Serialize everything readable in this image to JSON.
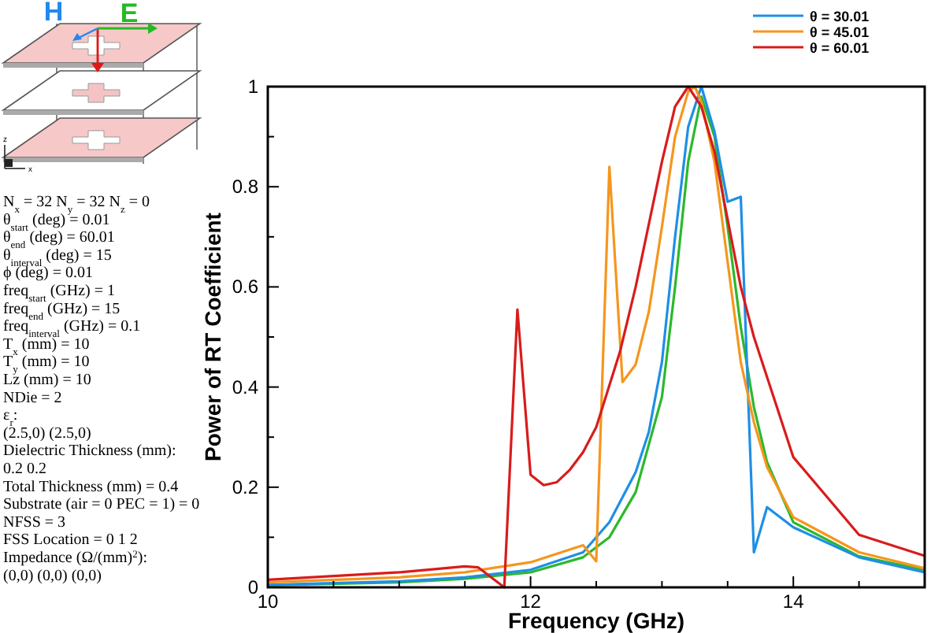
{
  "chart_data": {
    "type": "line",
    "xlabel": "Frequency (GHz)",
    "ylabel": "Power of RT Coefficient",
    "xlim": [
      10,
      15
    ],
    "ylim": [
      0,
      1
    ],
    "xticks": [
      10,
      {
        "value": 10.5,
        "label": null
      },
      {
        "value": 11,
        "label": null
      },
      {
        "value": 11.5,
        "label": null
      },
      12,
      {
        "value": 12.5,
        "label": null
      },
      {
        "value": 13,
        "label": null
      },
      {
        "value": 13.5,
        "label": null
      },
      14,
      {
        "value": 14.5,
        "label": null
      },
      {
        "value": 15,
        "label": null
      }
    ],
    "yticks": [
      0,
      {
        "value": 0.1,
        "label": null
      },
      0.2,
      {
        "value": 0.3,
        "label": null
      },
      0.4,
      {
        "value": 0.5,
        "label": null
      },
      0.6,
      {
        "value": 0.7,
        "label": null
      },
      0.8,
      {
        "value": 0.9,
        "label": null
      },
      1
    ],
    "grid": false,
    "legend": "top right",
    "marker": "none",
    "line_style": "solid",
    "series": [
      {
        "color": "#2cb82c",
        "x": [
          10,
          11,
          11.5,
          12,
          12.4,
          12.6,
          12.8,
          13,
          13.1,
          13.2,
          13.3,
          13.4,
          13.5,
          13.6,
          13.7,
          13.8,
          14,
          14.5,
          15
        ],
        "values": [
          0.004,
          0.01,
          0.017,
          0.03,
          0.06,
          0.1,
          0.19,
          0.38,
          0.6,
          0.85,
          0.98,
          0.9,
          0.72,
          0.52,
          0.36,
          0.25,
          0.13,
          0.062,
          0.035
        ]
      },
      {
        "name": "θ = 30.01",
        "color": "#1e8fe6",
        "x": [
          10,
          11,
          11.5,
          12,
          12.4,
          12.6,
          12.8,
          12.9,
          13,
          13.1,
          13.2,
          13.3,
          13.4,
          13.5,
          13.6,
          13.7,
          13.8,
          14,
          14.5,
          15
        ],
        "values": [
          0.005,
          0.012,
          0.02,
          0.035,
          0.07,
          0.13,
          0.23,
          0.31,
          0.45,
          0.7,
          0.92,
          1,
          0.91,
          0.77,
          0.78,
          0.07,
          0.16,
          0.12,
          0.06,
          0.03
        ]
      },
      {
        "name": "θ = 45.01",
        "color": "#f5961e",
        "x": [
          10,
          11,
          11.5,
          12,
          12.4,
          12.5,
          12.6,
          12.7,
          12.8,
          12.9,
          13,
          13.1,
          13.2,
          13.25,
          13.3,
          13.4,
          13.5,
          13.6,
          13.7,
          13.8,
          14,
          14.5,
          15
        ],
        "values": [
          0.01,
          0.02,
          0.03,
          0.05,
          0.084,
          0.052,
          0.84,
          0.41,
          0.445,
          0.55,
          0.72,
          0.9,
          0.99,
          1,
          0.97,
          0.85,
          0.65,
          0.45,
          0.33,
          0.24,
          0.14,
          0.07,
          0.038
        ]
      },
      {
        "name": "θ = 60.01",
        "color": "#d81c1c",
        "x": [
          10,
          11,
          11.5,
          11.6,
          11.7,
          11.8,
          11.9,
          12,
          12.1,
          12.2,
          12.3,
          12.4,
          12.5,
          12.68,
          12.8,
          13,
          13.1,
          13.2,
          13.3,
          13.4,
          13.6,
          13.7,
          14,
          14.5,
          15
        ],
        "values": [
          0.015,
          0.03,
          0.042,
          0.04,
          0.02,
          0,
          0.555,
          0.225,
          0.204,
          0.21,
          0.235,
          0.27,
          0.32,
          0.47,
          0.6,
          0.85,
          0.96,
          1,
          0.96,
          0.87,
          0.6,
          0.5,
          0.26,
          0.105,
          0.063
        ]
      }
    ],
    "annotations": [
      "H",
      "E",
      "z",
      "x",
      "N$_{x}$ = 32 N$_{y}$ = 32 N$_{z}$ = 0",
      "θ$_{start}$ (deg) = 0.01",
      "θ$_{end}$ (deg) = 60.01",
      "θ$_{interval}$ (deg) = 15",
      "ϕ (deg) = 0.01",
      "freq$_{start}$ (GHz) = 1",
      "freq$_{end}$ (GHz) = 15",
      "freq$_{interval}$ (GHz) = 0.1",
      "T$_{x}$ (mm) = 10",
      "T$_{y}$ (mm) = 10",
      "Lz (mm) = 10",
      "NDie = 2",
      "ε$_{r}$:",
      "(2.5,0) (2.5,0)",
      "Dielectric Thickness (mm):",
      "0.2 0.2",
      "Total Thickness (mm) = 0.4",
      "Substrate (air = 0 PEC = 1) = 0",
      "NFSS = 3",
      "FSS Location = 0 1 2",
      "Impedance (Ω/(mm)$^{2}$):",
      "(0,0) (0,0) (0,0)"
    ]
  }
}
